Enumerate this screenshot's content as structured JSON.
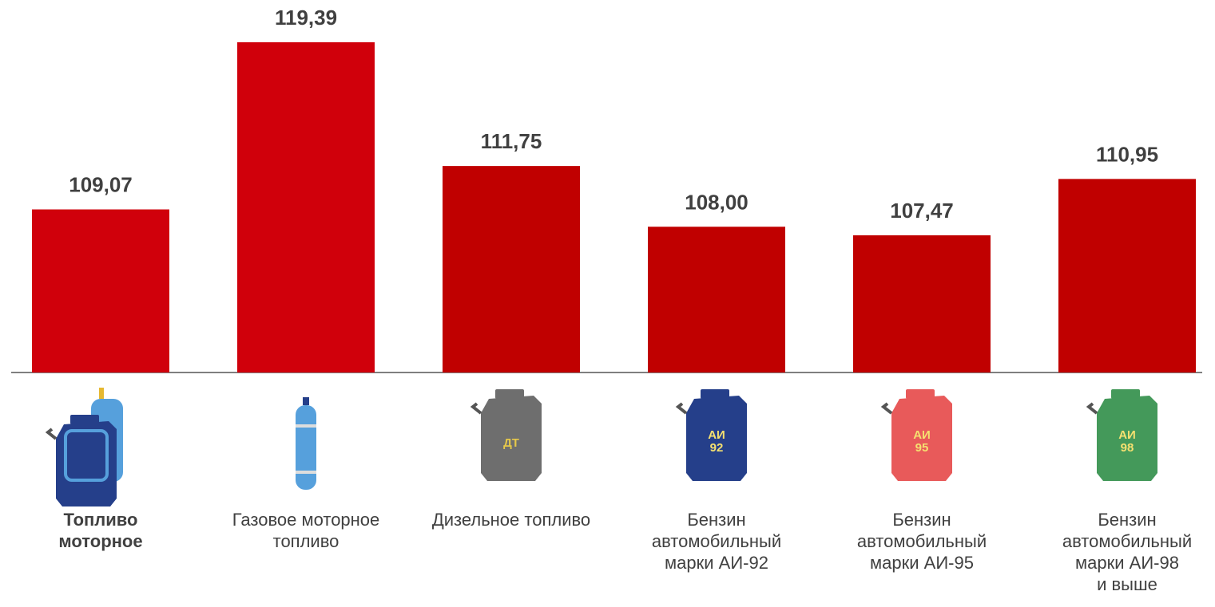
{
  "chart_data": {
    "type": "bar",
    "categories": [
      "Топливо\nмоторное",
      "Газовое моторное\nтопливо",
      "Дизельное топливо",
      "Бензин\nавтомобильный\nмарки АИ-92",
      "Бензин\nавтомобильный\nмарки АИ-95",
      "Бензин\nавтомобильный\nмарки АИ-98\nи выше"
    ],
    "values": [
      109.07,
      119.39,
      111.75,
      108.0,
      107.47,
      110.95
    ],
    "value_labels": [
      "109,07",
      "119,39",
      "111,75",
      "108,00",
      "107,47",
      "110,95"
    ],
    "colors": [
      "#d0000b",
      "#d0000b",
      "#c00000",
      "#c00000",
      "#c00000",
      "#c00000"
    ],
    "icon_labels": [
      null,
      null,
      "ДТ",
      "АИ\n92",
      "АИ\n95",
      "АИ\n98"
    ],
    "ylim": [
      99,
      122
    ]
  }
}
